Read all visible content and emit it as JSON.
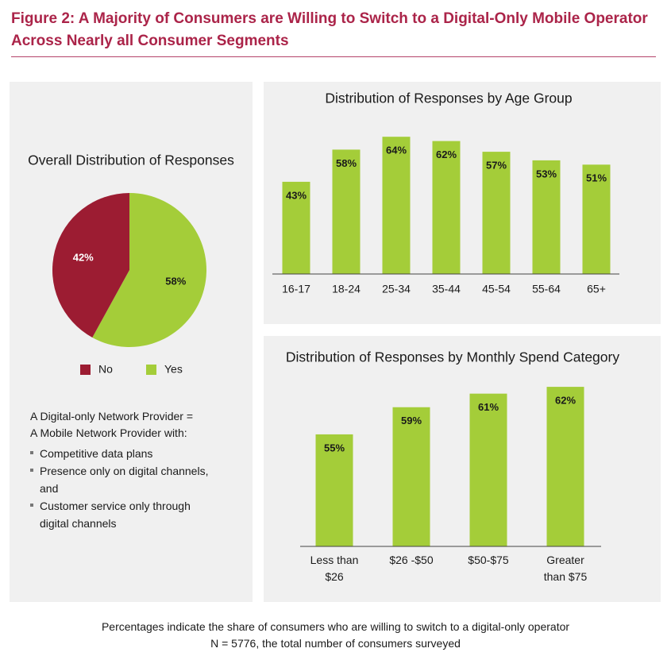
{
  "title": "Figure 2: A Majority of Consumers are Willing to Switch to a Digital-Only Mobile Operator Across Nearly all Consumer Segments",
  "definition": {
    "heading": [
      "A Digital-only Network Provider =",
      "A Mobile Network Provider with:"
    ],
    "bullets": [
      "Competitive data plans",
      "Presence only on digital channels, and",
      "Customer service only through digital channels"
    ]
  },
  "footnote": [
    "Percentages indicate the share of consumers who are willing to switch to a digital-only operator",
    "N = 5776, the total number of consumers surveyed"
  ],
  "chart_data": [
    {
      "type": "pie",
      "title": "Overall Distribution of Responses",
      "categories": [
        "No",
        "Yes"
      ],
      "values": [
        42,
        58
      ],
      "value_labels": [
        "42%",
        "58%"
      ],
      "colors": [
        "#9c1c32",
        "#a4cd39"
      ],
      "legend": "bottom"
    },
    {
      "type": "bar",
      "title": "Distribution of Responses by Age Group",
      "categories": [
        "16-17",
        "18-24",
        "25-34",
        "35-44",
        "45-54",
        "55-64",
        "65+"
      ],
      "values": [
        43,
        58,
        64,
        62,
        57,
        53,
        51
      ],
      "value_labels": [
        "43%",
        "58%",
        "64%",
        "62%",
        "57%",
        "53%",
        "51%"
      ],
      "color": "#a4cd39",
      "ylim": [
        0,
        70
      ]
    },
    {
      "type": "bar",
      "title": "Distribution of Responses by Monthly Spend Category",
      "categories": [
        "Less than $26",
        "$26 -$50",
        "$50-$75",
        "Greater than $75"
      ],
      "values": [
        55,
        59,
        61,
        62
      ],
      "value_labels": [
        "55%",
        "59%",
        "61%",
        "62%"
      ],
      "color": "#a4cd39",
      "ylim": [
        38.5,
        64
      ]
    }
  ]
}
